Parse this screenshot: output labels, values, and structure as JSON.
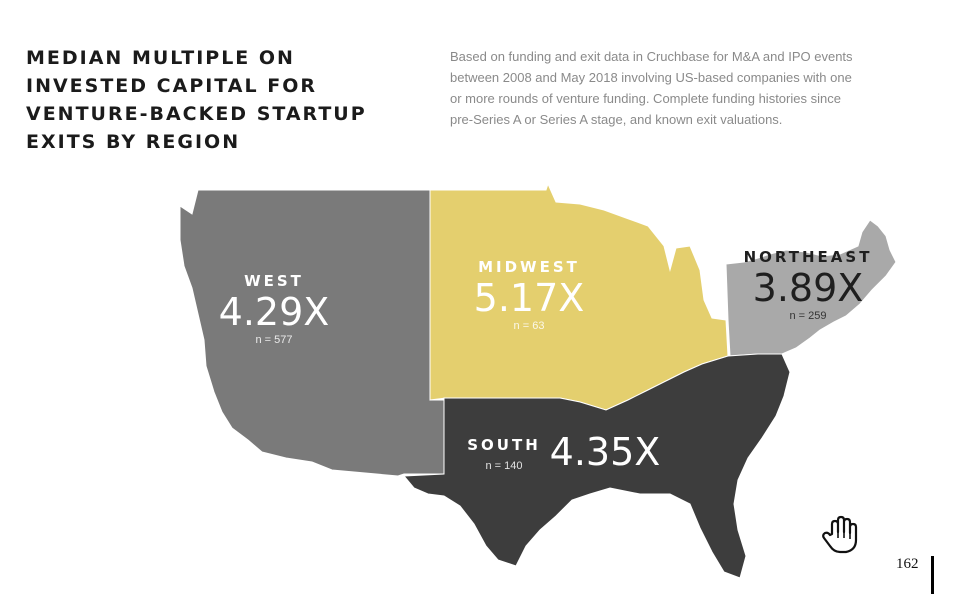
{
  "title": {
    "lines": [
      "MEDIAN MULTIPLE ON",
      "INVESTED CAPITAL FOR",
      "VENTURE-BACKED STARTUP",
      "EXITS BY REGION"
    ]
  },
  "description": {
    "lines": [
      "Based on funding and exit data in Cruchbase for M&A and IPO events",
      "between 2008 and May 2018 involving US-based companies with one",
      "or more rounds of venture funding. Complete funding histories since",
      "pre-Series A or Series A stage, and known exit valuations."
    ]
  },
  "regions": {
    "west": {
      "name": "WEST",
      "value": "4.29X",
      "n": "n = 577",
      "color": "#7a7a7a"
    },
    "midwest": {
      "name": "MIDWEST",
      "value": "5.17X",
      "n": "n = 63",
      "color": "#e4cf6e"
    },
    "northeast": {
      "name": "NORTHEAST",
      "value": "3.89X",
      "n": "n = 259",
      "color": "#a9a9a9"
    },
    "south": {
      "name": "SOUTH",
      "value": "4.35X",
      "n": "n = 140",
      "color": "#3d3d3d"
    }
  },
  "icons": {
    "cursor": "hand-pointer-icon"
  },
  "page_number": "162"
}
